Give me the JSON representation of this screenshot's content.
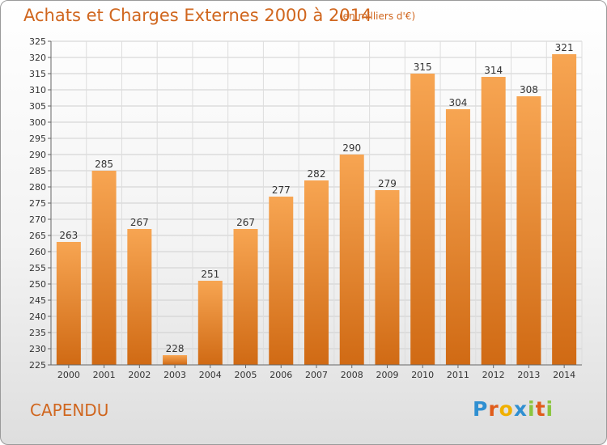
{
  "title": "Achats et Charges Externes 2000 à 2014",
  "unit": "(en milliers d'€)",
  "location": "CAPENDU",
  "logo": {
    "letters": [
      "P",
      "r",
      "o",
      "x",
      "i",
      "t",
      "i"
    ],
    "colors": [
      "#2f8fd1",
      "#e05c1b",
      "#f0b000",
      "#2f8fd1",
      "#8bc53f",
      "#e05c1b",
      "#8bc53f"
    ]
  },
  "colors": {
    "bar_top": "#f7a552",
    "bar_bottom": "#d06a14",
    "title": "#d0661e"
  },
  "chart_data": {
    "type": "bar",
    "categories": [
      "2000",
      "2001",
      "2002",
      "2003",
      "2004",
      "2005",
      "2006",
      "2007",
      "2008",
      "2009",
      "2010",
      "2011",
      "2012",
      "2013",
      "2014"
    ],
    "values": [
      263,
      285,
      267,
      228,
      251,
      267,
      277,
      282,
      290,
      279,
      315,
      304,
      314,
      308,
      321
    ],
    "ylim": [
      225,
      325
    ],
    "yticks": [
      225,
      230,
      235,
      240,
      245,
      250,
      255,
      260,
      265,
      270,
      275,
      280,
      285,
      290,
      295,
      300,
      305,
      310,
      315,
      320,
      325
    ],
    "grid": true,
    "legend": "none"
  }
}
